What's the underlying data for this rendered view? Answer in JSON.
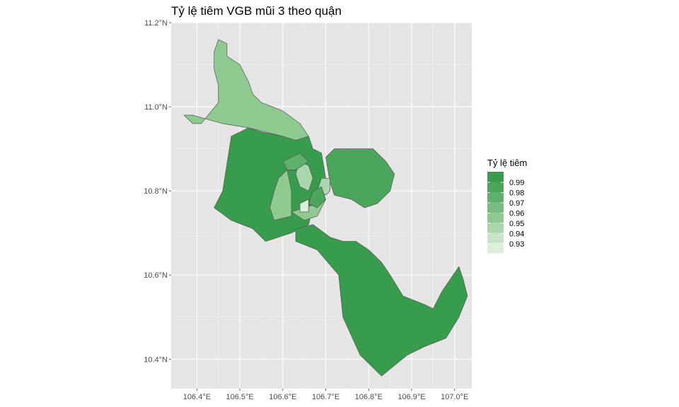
{
  "title": "Tỷ lệ tiêm VGB mũi 3 theo quận",
  "x_axis": {
    "ticks": [
      "106.4°E",
      "106.5°E",
      "106.6°E",
      "106.7°E",
      "106.8°E",
      "106.9°E",
      "107.0°E"
    ],
    "values": [
      106.4,
      106.5,
      106.6,
      106.7,
      106.8,
      106.9,
      107.0
    ],
    "range": [
      106.34,
      107.04
    ]
  },
  "y_axis": {
    "ticks": [
      "10.4°N",
      "10.6°N",
      "10.8°N",
      "11.0°N",
      "11.2°N"
    ],
    "values": [
      10.4,
      10.6,
      10.8,
      11.0,
      11.2
    ],
    "range": [
      10.33,
      11.2
    ]
  },
  "grid": true,
  "panel_color": "#e5e5e5",
  "grid_color": "#ffffff",
  "border_color": "#555555",
  "legend": {
    "title": "Tỷ lệ tiêm",
    "placement": "right",
    "labels": [
      "0.99",
      "0.98",
      "0.97",
      "0.96",
      "0.95",
      "0.94",
      "0.93"
    ],
    "values": [
      0.99,
      0.98,
      0.97,
      0.96,
      0.95,
      0.94,
      0.93
    ],
    "colors": [
      "#379c4b",
      "#4aa65a",
      "#5fb06b",
      "#77bb80",
      "#8ec893",
      "#aad6ab",
      "#c7e4c6",
      "#dcefd9"
    ]
  },
  "chart_data": {
    "type": "choropleth",
    "value_name": "Tỷ lệ tiêm",
    "regions": [
      {
        "fill": "#8fca91",
        "value": 0.955,
        "coords": [
          [
            106.45,
            11.16
          ],
          [
            106.47,
            11.15
          ],
          [
            106.47,
            11.12
          ],
          [
            106.5,
            11.1
          ],
          [
            106.52,
            11.06
          ],
          [
            106.53,
            11.03
          ],
          [
            106.55,
            11.01
          ],
          [
            106.6,
            10.99
          ],
          [
            106.64,
            10.96
          ],
          [
            106.66,
            10.93
          ],
          [
            106.63,
            10.92
          ],
          [
            106.6,
            10.93
          ],
          [
            106.52,
            10.95
          ],
          [
            106.46,
            10.96
          ],
          [
            106.39,
            10.98
          ],
          [
            106.37,
            10.98
          ],
          [
            106.39,
            10.96
          ],
          [
            106.41,
            10.96
          ],
          [
            106.45,
            11.01
          ],
          [
            106.45,
            11.05
          ],
          [
            106.44,
            11.09
          ],
          [
            106.44,
            11.13
          ]
        ]
      },
      {
        "fill": "#379c4b",
        "value": 0.99,
        "coords": [
          [
            106.48,
            10.93
          ],
          [
            106.52,
            10.95
          ],
          [
            106.55,
            10.94
          ],
          [
            106.6,
            10.93
          ],
          [
            106.63,
            10.92
          ],
          [
            106.66,
            10.93
          ],
          [
            106.67,
            10.9
          ],
          [
            106.69,
            10.89
          ],
          [
            106.7,
            10.83
          ],
          [
            106.69,
            10.79
          ],
          [
            106.67,
            10.76
          ],
          [
            106.66,
            10.72
          ],
          [
            106.64,
            10.71
          ],
          [
            106.62,
            10.7
          ],
          [
            106.59,
            10.69
          ],
          [
            106.56,
            10.68
          ],
          [
            106.53,
            10.71
          ],
          [
            106.48,
            10.73
          ],
          [
            106.44,
            10.76
          ],
          [
            106.46,
            10.8
          ]
        ]
      },
      {
        "fill": "#379c4b",
        "value": 0.99,
        "coords": [
          [
            106.63,
            10.71
          ],
          [
            106.67,
            10.72
          ],
          [
            106.71,
            10.69
          ],
          [
            106.74,
            10.68
          ],
          [
            106.77,
            10.68
          ],
          [
            106.8,
            10.66
          ],
          [
            106.83,
            10.63
          ],
          [
            106.85,
            10.6
          ],
          [
            106.88,
            10.55
          ],
          [
            106.93,
            10.53
          ],
          [
            106.95,
            10.52
          ],
          [
            106.97,
            10.56
          ],
          [
            106.99,
            10.59
          ],
          [
            107.01,
            10.62
          ],
          [
            107.02,
            10.59
          ],
          [
            107.03,
            10.55
          ],
          [
            107.01,
            10.5
          ],
          [
            106.98,
            10.45
          ],
          [
            106.93,
            10.43
          ],
          [
            106.89,
            10.41
          ],
          [
            106.83,
            10.36
          ],
          [
            106.78,
            10.41
          ],
          [
            106.74,
            10.5
          ],
          [
            106.73,
            10.6
          ],
          [
            106.68,
            10.66
          ],
          [
            106.63,
            10.68
          ]
        ]
      },
      {
        "fill": "#4aa65a",
        "value": 0.98,
        "coords": [
          [
            106.7,
            10.88
          ],
          [
            106.72,
            10.9
          ],
          [
            106.76,
            10.9
          ],
          [
            106.81,
            10.9
          ],
          [
            106.84,
            10.87
          ],
          [
            106.86,
            10.84
          ],
          [
            106.85,
            10.8
          ],
          [
            106.82,
            10.77
          ],
          [
            106.79,
            10.76
          ],
          [
            106.76,
            10.78
          ],
          [
            106.72,
            10.79
          ],
          [
            106.71,
            10.82
          ]
        ]
      },
      {
        "fill": "#8fca91",
        "value": 0.955,
        "coords": [
          [
            106.59,
            10.83
          ],
          [
            106.61,
            10.85
          ],
          [
            106.62,
            10.8
          ],
          [
            106.62,
            10.74
          ],
          [
            106.58,
            10.73
          ],
          [
            106.57,
            10.76
          ],
          [
            106.58,
            10.8
          ]
        ]
      },
      {
        "fill": "#aad6ab",
        "value": 0.945,
        "coords": [
          [
            106.64,
            10.87
          ],
          [
            106.66,
            10.86
          ],
          [
            106.67,
            10.83
          ],
          [
            106.66,
            10.8
          ],
          [
            106.64,
            10.81
          ],
          [
            106.63,
            10.84
          ]
        ]
      },
      {
        "fill": "#aad6ab",
        "value": 0.945,
        "coords": [
          [
            106.69,
            10.83
          ],
          [
            106.71,
            10.83
          ],
          [
            106.71,
            10.8
          ],
          [
            106.7,
            10.79
          ],
          [
            106.68,
            10.8
          ]
        ]
      },
      {
        "fill": "#8fca91",
        "value": 0.955,
        "coords": [
          [
            106.62,
            10.75
          ],
          [
            106.65,
            10.76
          ],
          [
            106.68,
            10.77
          ],
          [
            106.7,
            10.78
          ],
          [
            106.68,
            10.74
          ],
          [
            106.65,
            10.73
          ]
        ]
      },
      {
        "fill": "#dcefd9",
        "value": 0.93,
        "coords": [
          [
            106.64,
            10.77
          ],
          [
            106.66,
            10.78
          ],
          [
            106.66,
            10.75
          ],
          [
            106.64,
            10.75
          ]
        ]
      },
      {
        "fill": "#5fb06b",
        "value": 0.97,
        "coords": [
          [
            106.6,
            10.87
          ],
          [
            106.64,
            10.89
          ],
          [
            106.66,
            10.87
          ],
          [
            106.63,
            10.85
          ],
          [
            106.61,
            10.85
          ]
        ]
      },
      {
        "fill": "#4aa65a",
        "value": 0.98,
        "coords": [
          [
            106.67,
            10.8
          ],
          [
            106.69,
            10.81
          ],
          [
            106.7,
            10.78
          ],
          [
            106.68,
            10.76
          ],
          [
            106.66,
            10.77
          ]
        ]
      }
    ]
  }
}
